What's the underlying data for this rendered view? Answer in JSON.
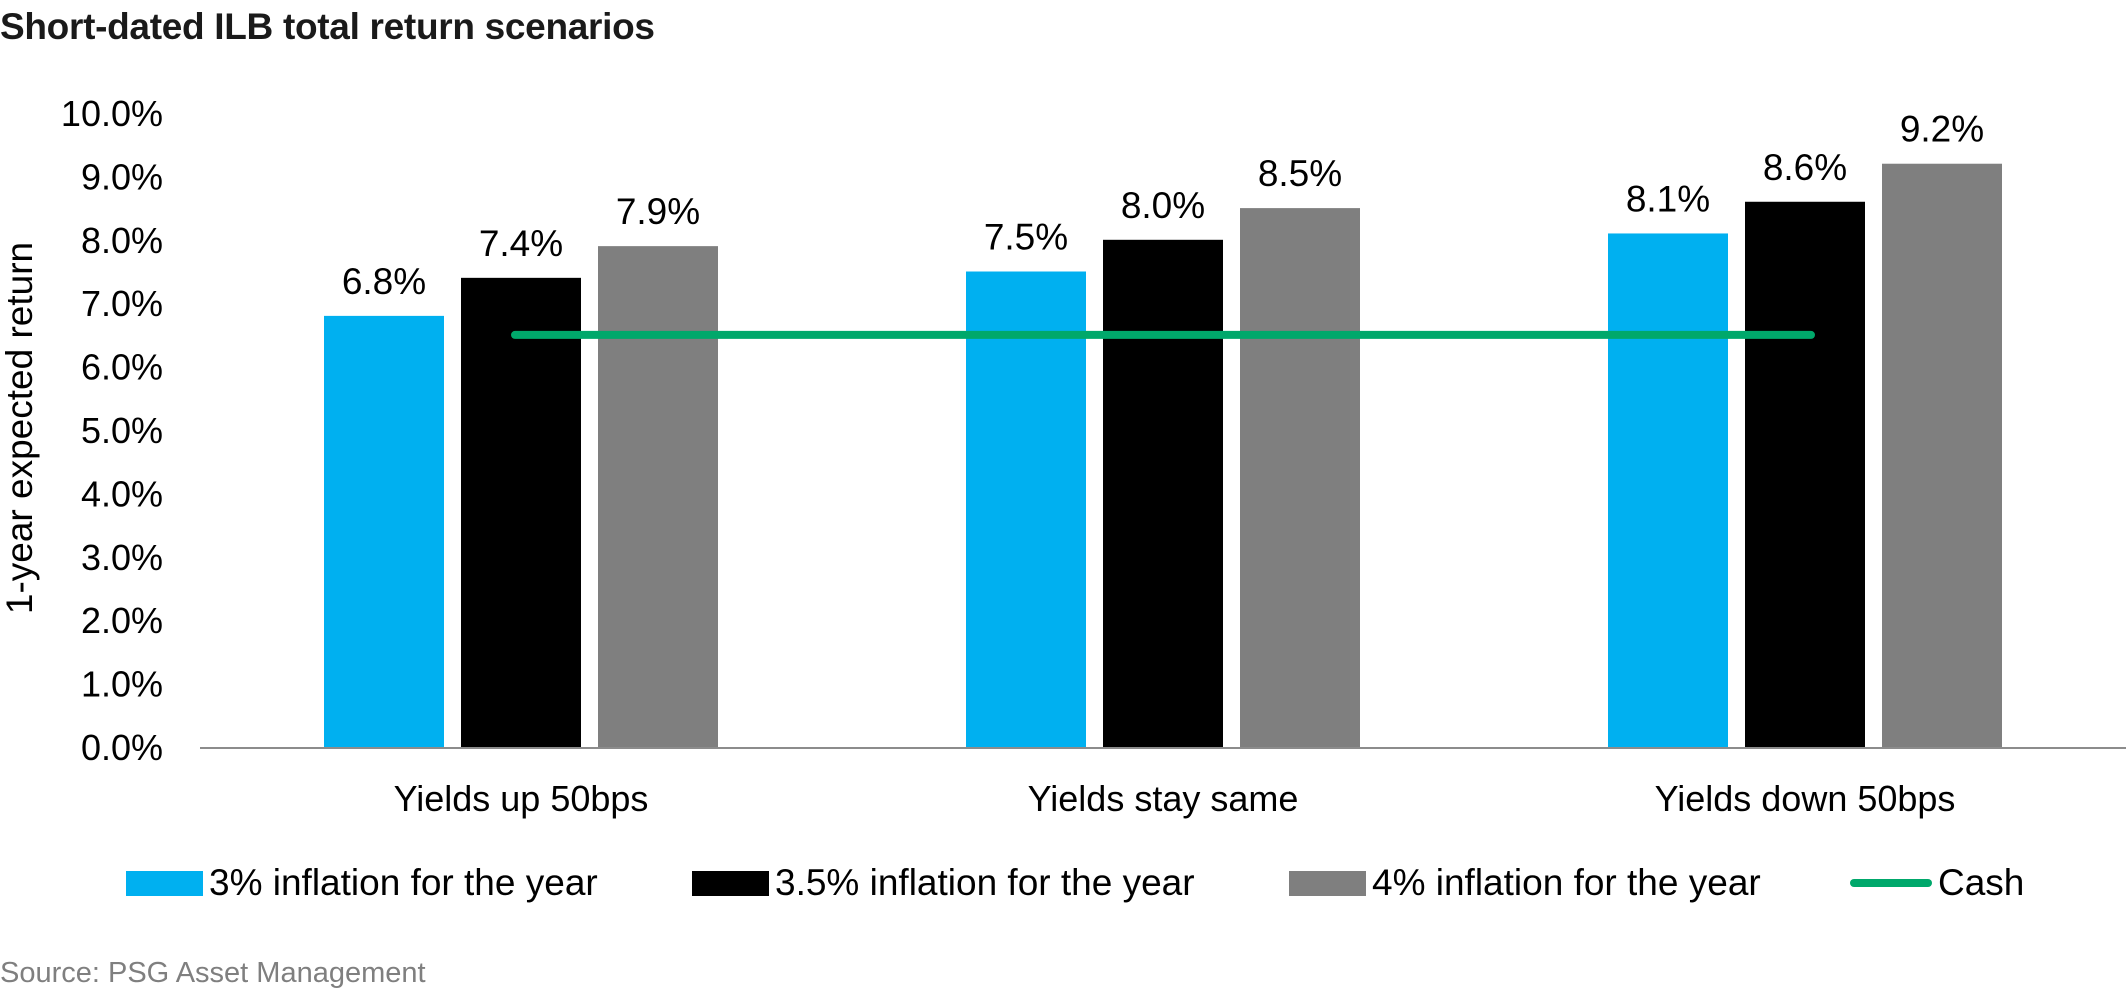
{
  "title": "Short-dated ILB total return scenarios",
  "source": "Source: PSG Asset Management",
  "chart_data": {
    "type": "bar",
    "ylabel": "1-year expected return",
    "ylim": [
      0,
      10
    ],
    "yticks": [
      "0.0%",
      "1.0%",
      "2.0%",
      "3.0%",
      "4.0%",
      "5.0%",
      "6.0%",
      "7.0%",
      "8.0%",
      "9.0%",
      "10.0%"
    ],
    "categories": [
      "Yields up 50bps",
      "Yields stay same",
      "Yields down 50bps"
    ],
    "series": [
      {
        "name": "3% inflation for the year",
        "color": "#00b0f0",
        "values": [
          6.8,
          7.5,
          8.1
        ],
        "labels": [
          "6.8%",
          "7.5%",
          "8.1%"
        ]
      },
      {
        "name": "3.5% inflation for the year",
        "color": "#000000",
        "values": [
          7.4,
          8.0,
          8.6
        ],
        "labels": [
          "7.4%",
          "8.0%",
          "8.6%"
        ]
      },
      {
        "name": "4% inflation for the year",
        "color": "#7f7f7f",
        "values": [
          7.9,
          8.5,
          9.2
        ],
        "labels": [
          "7.9%",
          "8.5%",
          "9.2%"
        ]
      }
    ],
    "line_series": {
      "name": "Cash",
      "color": "#00a86b",
      "value": 6.5
    },
    "grid": false,
    "legend_position": "bottom"
  }
}
